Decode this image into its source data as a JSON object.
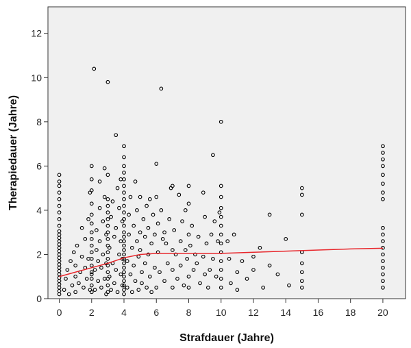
{
  "chart_data": {
    "type": "scatter",
    "title": "",
    "xlabel": "Strafdauer (Jahre)",
    "ylabel": "Therapiedauer (Jahre)",
    "xlim": [
      -0.7,
      21.4
    ],
    "ylim": [
      0,
      13.2
    ],
    "x_ticks": [
      0,
      2,
      4,
      6,
      8,
      10,
      12,
      14,
      16,
      18,
      20
    ],
    "y_ticks": [
      0,
      2,
      4,
      6,
      8,
      10,
      12
    ],
    "grid": false,
    "legend": "none",
    "colors": {
      "plot_bg": "#f0f0f0",
      "point_stroke": "#000000",
      "fit_line": "#e8262b"
    },
    "points": [
      [
        0,
        0.2
      ],
      [
        0,
        0.35
      ],
      [
        0,
        0.5
      ],
      [
        0,
        0.65
      ],
      [
        0,
        0.8
      ],
      [
        0,
        0.95
      ],
      [
        0,
        1.1
      ],
      [
        0,
        1.25
      ],
      [
        0,
        1.4
      ],
      [
        0,
        1.55
      ],
      [
        0,
        1.7
      ],
      [
        0,
        1.85
      ],
      [
        0,
        2.0
      ],
      [
        0,
        2.15
      ],
      [
        0,
        2.3
      ],
      [
        0,
        2.45
      ],
      [
        0,
        2.6
      ],
      [
        0,
        2.75
      ],
      [
        0,
        2.9
      ],
      [
        0,
        3.05
      ],
      [
        0,
        3.3
      ],
      [
        0,
        3.6
      ],
      [
        0,
        3.9
      ],
      [
        0,
        4.2
      ],
      [
        0,
        4.5
      ],
      [
        0,
        4.8
      ],
      [
        0,
        5.1
      ],
      [
        0,
        5.3
      ],
      [
        0,
        5.6
      ],
      [
        0.3,
        0.4
      ],
      [
        0.4,
        0.9
      ],
      [
        0.5,
        1.3
      ],
      [
        0.6,
        0.2
      ],
      [
        0.7,
        1.7
      ],
      [
        0.8,
        0.6
      ],
      [
        0.9,
        2.1
      ],
      [
        1.0,
        0.3
      ],
      [
        1.0,
        1.0
      ],
      [
        1.0,
        1.5
      ],
      [
        1.1,
        2.4
      ],
      [
        1.2,
        0.7
      ],
      [
        1.3,
        1.2
      ],
      [
        1.4,
        1.9
      ],
      [
        1.4,
        3.2
      ],
      [
        1.5,
        0.5
      ],
      [
        1.6,
        1.4
      ],
      [
        1.6,
        2.7
      ],
      [
        1.7,
        0.9
      ],
      [
        1.8,
        1.8
      ],
      [
        1.8,
        3.6
      ],
      [
        1.9,
        4.8
      ],
      [
        1.9,
        0.4
      ],
      [
        2.0,
        4.9
      ],
      [
        2.0,
        1.1
      ],
      [
        2,
        0.3
      ],
      [
        2,
        0.6
      ],
      [
        2,
        0.9
      ],
      [
        2,
        1.2
      ],
      [
        2,
        1.5
      ],
      [
        2,
        1.8
      ],
      [
        2,
        2.1
      ],
      [
        2,
        2.4
      ],
      [
        2,
        2.7
      ],
      [
        2,
        3.0
      ],
      [
        2,
        3.4
      ],
      [
        2,
        3.8
      ],
      [
        2,
        4.3
      ],
      [
        2,
        5.4
      ],
      [
        2,
        6.0
      ],
      [
        2.15,
        10.4
      ],
      [
        2.2,
        0.4
      ],
      [
        2.2,
        1.3
      ],
      [
        2.3,
        2.2
      ],
      [
        2.3,
        3.1
      ],
      [
        2.4,
        0.8
      ],
      [
        2.4,
        1.7
      ],
      [
        2.5,
        4.1
      ],
      [
        2.5,
        2.6
      ],
      [
        2.5,
        5.3
      ],
      [
        2.6,
        0.5
      ],
      [
        2.6,
        1.4
      ],
      [
        2.7,
        3.5
      ],
      [
        2.7,
        2.0
      ],
      [
        2.8,
        0.9
      ],
      [
        2.8,
        4.6
      ],
      [
        2.8,
        5.9
      ],
      [
        2.9,
        1.6
      ],
      [
        2.9,
        2.9
      ],
      [
        2.9,
        0.2
      ],
      [
        3.0,
        9.8
      ],
      [
        3.0,
        5.6
      ],
      [
        3,
        0.3
      ],
      [
        3,
        0.6
      ],
      [
        3,
        0.9
      ],
      [
        3,
        1.2
      ],
      [
        3,
        1.5
      ],
      [
        3,
        1.8
      ],
      [
        3,
        2.1
      ],
      [
        3,
        2.4
      ],
      [
        3,
        2.7
      ],
      [
        3,
        3.0
      ],
      [
        3,
        3.3
      ],
      [
        3,
        3.6
      ],
      [
        3,
        3.9
      ],
      [
        3,
        4.2
      ],
      [
        3,
        4.5
      ],
      [
        3.1,
        1.0
      ],
      [
        3.1,
        2.3
      ],
      [
        3.2,
        0.4
      ],
      [
        3.2,
        3.7
      ],
      [
        3.3,
        1.6
      ],
      [
        3.3,
        4.4
      ],
      [
        3.4,
        0.7
      ],
      [
        3.4,
        2.8
      ],
      [
        3.5,
        7.4
      ],
      [
        3.5,
        1.3
      ],
      [
        3.5,
        3.2
      ],
      [
        3.6,
        5.0
      ],
      [
        3.6,
        0.3
      ],
      [
        3.7,
        2.0
      ],
      [
        3.7,
        4.1
      ],
      [
        3.8,
        1.1
      ],
      [
        3.8,
        2.6
      ],
      [
        3.8,
        5.4
      ],
      [
        3.9,
        0.6
      ],
      [
        3.9,
        3.5
      ],
      [
        3.9,
        1.8
      ],
      [
        4,
        0.2
      ],
      [
        4,
        0.4
      ],
      [
        4,
        0.6
      ],
      [
        4,
        0.8
      ],
      [
        4,
        1.0
      ],
      [
        4,
        1.2
      ],
      [
        4,
        1.4
      ],
      [
        4,
        1.6
      ],
      [
        4,
        1.8
      ],
      [
        4,
        2.0
      ],
      [
        4,
        2.2
      ],
      [
        4,
        2.4
      ],
      [
        4,
        2.6
      ],
      [
        4,
        2.8
      ],
      [
        4,
        3.0
      ],
      [
        4,
        3.3
      ],
      [
        4,
        3.6
      ],
      [
        4,
        3.9
      ],
      [
        4,
        4.2
      ],
      [
        4,
        4.5
      ],
      [
        4,
        4.8
      ],
      [
        4,
        5.1
      ],
      [
        4,
        5.4
      ],
      [
        4,
        5.7
      ],
      [
        4,
        6.0
      ],
      [
        4,
        6.4
      ],
      [
        4,
        6.9
      ],
      [
        4.2,
        0.5
      ],
      [
        4.2,
        1.7
      ],
      [
        4.3,
        2.9
      ],
      [
        4.3,
        3.8
      ],
      [
        4.4,
        1.1
      ],
      [
        4.4,
        4.6
      ],
      [
        4.5,
        0.3
      ],
      [
        4.5,
        2.3
      ],
      [
        4.6,
        3.3
      ],
      [
        4.6,
        1.5
      ],
      [
        4.7,
        0.8
      ],
      [
        4.7,
        5.3
      ],
      [
        4.8,
        2.6
      ],
      [
        4.8,
        4.0
      ],
      [
        4.9,
        1.9
      ],
      [
        4.9,
        0.4
      ],
      [
        5.0,
        3.0
      ],
      [
        5.0,
        2.2
      ],
      [
        5.0,
        4.6
      ],
      [
        5.1,
        1.2
      ],
      [
        5.1,
        0.7
      ],
      [
        5.2,
        3.6
      ],
      [
        5.3,
        2.8
      ],
      [
        5.3,
        1.6
      ],
      [
        5.4,
        4.2
      ],
      [
        5.4,
        0.5
      ],
      [
        5.5,
        2.0
      ],
      [
        5.5,
        3.2
      ],
      [
        5.6,
        1.0
      ],
      [
        5.6,
        4.5
      ],
      [
        5.7,
        2.5
      ],
      [
        5.7,
        0.3
      ],
      [
        5.8,
        3.8
      ],
      [
        5.9,
        1.4
      ],
      [
        5.9,
        2.9
      ],
      [
        6.0,
        6.1
      ],
      [
        6.0,
        4.6
      ],
      [
        6.0,
        0.5
      ],
      [
        6.1,
        2.1
      ],
      [
        6.1,
        3.4
      ],
      [
        6.2,
        1.2
      ],
      [
        6.3,
        9.5
      ],
      [
        6.3,
        4.0
      ],
      [
        6.4,
        2.7
      ],
      [
        6.5,
        0.8
      ],
      [
        6.5,
        3.0
      ],
      [
        6.6,
        2.5
      ],
      [
        6.7,
        1.6
      ],
      [
        6.8,
        3.6
      ],
      [
        6.9,
        5.0
      ],
      [
        7.0,
        5.1
      ],
      [
        7.0,
        2.2
      ],
      [
        7.0,
        0.5
      ],
      [
        7.0,
        1.3
      ],
      [
        7.1,
        3.1
      ],
      [
        7.2,
        2.0
      ],
      [
        7.3,
        0.9
      ],
      [
        7.4,
        4.7
      ],
      [
        7.5,
        2.6
      ],
      [
        7.5,
        1.5
      ],
      [
        7.6,
        3.5
      ],
      [
        7.7,
        0.6
      ],
      [
        7.8,
        2.2
      ],
      [
        7.8,
        4.0
      ],
      [
        7.9,
        1.8
      ],
      [
        8.0,
        5.1
      ],
      [
        8.0,
        4.3
      ],
      [
        8.0,
        2.9
      ],
      [
        8.0,
        1.0
      ],
      [
        8.0,
        0.5
      ],
      [
        8.1,
        2.4
      ],
      [
        8.2,
        3.3
      ],
      [
        8.3,
        1.3
      ],
      [
        8.4,
        2.0
      ],
      [
        8.5,
        1.6
      ],
      [
        8.6,
        2.8
      ],
      [
        8.7,
        0.7
      ],
      [
        8.9,
        4.8
      ],
      [
        8.9,
        1.9
      ],
      [
        9.0,
        3.7
      ],
      [
        9.0,
        1.1
      ],
      [
        9.1,
        2.5
      ],
      [
        9.2,
        0.5
      ],
      [
        9.3,
        1.3
      ],
      [
        9.4,
        2.9
      ],
      [
        9.5,
        6.5
      ],
      [
        9.5,
        1.8
      ],
      [
        9.6,
        3.5
      ],
      [
        9.7,
        1.0
      ],
      [
        9.8,
        2.6
      ],
      [
        9.9,
        3.9
      ],
      [
        10,
        0.5
      ],
      [
        10,
        0.9
      ],
      [
        10,
        1.3
      ],
      [
        10,
        1.7
      ],
      [
        10,
        2.1
      ],
      [
        10,
        2.5
      ],
      [
        10,
        2.9
      ],
      [
        10,
        3.3
      ],
      [
        10,
        3.7
      ],
      [
        10,
        4.1
      ],
      [
        10,
        4.6
      ],
      [
        10,
        5.1
      ],
      [
        10,
        8.0
      ],
      [
        10.4,
        2.6
      ],
      [
        10.5,
        1.8
      ],
      [
        10.6,
        0.7
      ],
      [
        10.8,
        2.9
      ],
      [
        11.0,
        0.4
      ],
      [
        11.0,
        1.2
      ],
      [
        11.3,
        1.7
      ],
      [
        11.6,
        0.9
      ],
      [
        12.0,
        1.9
      ],
      [
        12.0,
        1.3
      ],
      [
        12.4,
        2.3
      ],
      [
        12.6,
        0.5
      ],
      [
        13.0,
        3.8
      ],
      [
        13.0,
        1.5
      ],
      [
        13.5,
        1.1
      ],
      [
        14.0,
        2.7
      ],
      [
        14.2,
        0.6
      ],
      [
        15,
        0.5
      ],
      [
        15,
        0.8
      ],
      [
        15,
        1.2
      ],
      [
        15,
        1.6
      ],
      [
        15,
        2.1
      ],
      [
        15,
        3.8
      ],
      [
        15,
        4.7
      ],
      [
        15,
        5.0
      ],
      [
        20,
        0.5
      ],
      [
        20,
        0.8
      ],
      [
        20,
        1.1
      ],
      [
        20,
        1.4
      ],
      [
        20,
        1.7
      ],
      [
        20,
        2.0
      ],
      [
        20,
        2.3
      ],
      [
        20,
        2.6
      ],
      [
        20,
        2.9
      ],
      [
        20,
        3.2
      ],
      [
        20,
        4.5
      ],
      [
        20,
        4.8
      ],
      [
        20,
        5.2
      ],
      [
        20,
        5.6
      ],
      [
        20,
        6.0
      ],
      [
        20,
        6.3
      ],
      [
        20,
        6.6
      ],
      [
        20,
        6.9
      ]
    ],
    "fit_line": [
      [
        0,
        1.0
      ],
      [
        1,
        1.2
      ],
      [
        2,
        1.4
      ],
      [
        3,
        1.6
      ],
      [
        4,
        1.85
      ],
      [
        5,
        2.0
      ],
      [
        6,
        2.05
      ],
      [
        7,
        2.05
      ],
      [
        8,
        2.05
      ],
      [
        10,
        2.05
      ],
      [
        12,
        2.1
      ],
      [
        14,
        2.15
      ],
      [
        16,
        2.2
      ],
      [
        18,
        2.25
      ],
      [
        20,
        2.28
      ]
    ]
  }
}
